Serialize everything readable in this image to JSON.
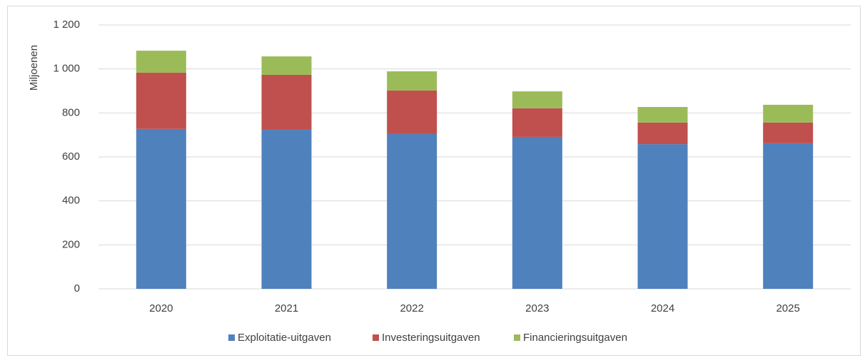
{
  "chart_data": {
    "type": "stacked_bar",
    "y_label": "Miljoenen",
    "categories": [
      "2020",
      "2021",
      "2022",
      "2023",
      "2024",
      "2025"
    ],
    "series": [
      {
        "name": "Exploitatie-uitgaven",
        "color": "#4f81bd",
        "values": [
          727,
          723,
          704,
          691,
          658,
          662
        ]
      },
      {
        "name": "Investeringsuitgaven",
        "color": "#c0504d",
        "values": [
          256,
          250,
          198,
          130,
          98,
          94
        ]
      },
      {
        "name": "Financieringsuitgaven",
        "color": "#9bbb59",
        "values": [
          100,
          84,
          87,
          77,
          71,
          81
        ]
      }
    ],
    "ylim": [
      0,
      1200
    ],
    "yticks": [
      0,
      200,
      400,
      600,
      800,
      {
        "value": 1000,
        "label": "1 000"
      },
      {
        "value": 1200,
        "label": "1 200"
      }
    ],
    "grid": true,
    "legend": "bottom"
  }
}
